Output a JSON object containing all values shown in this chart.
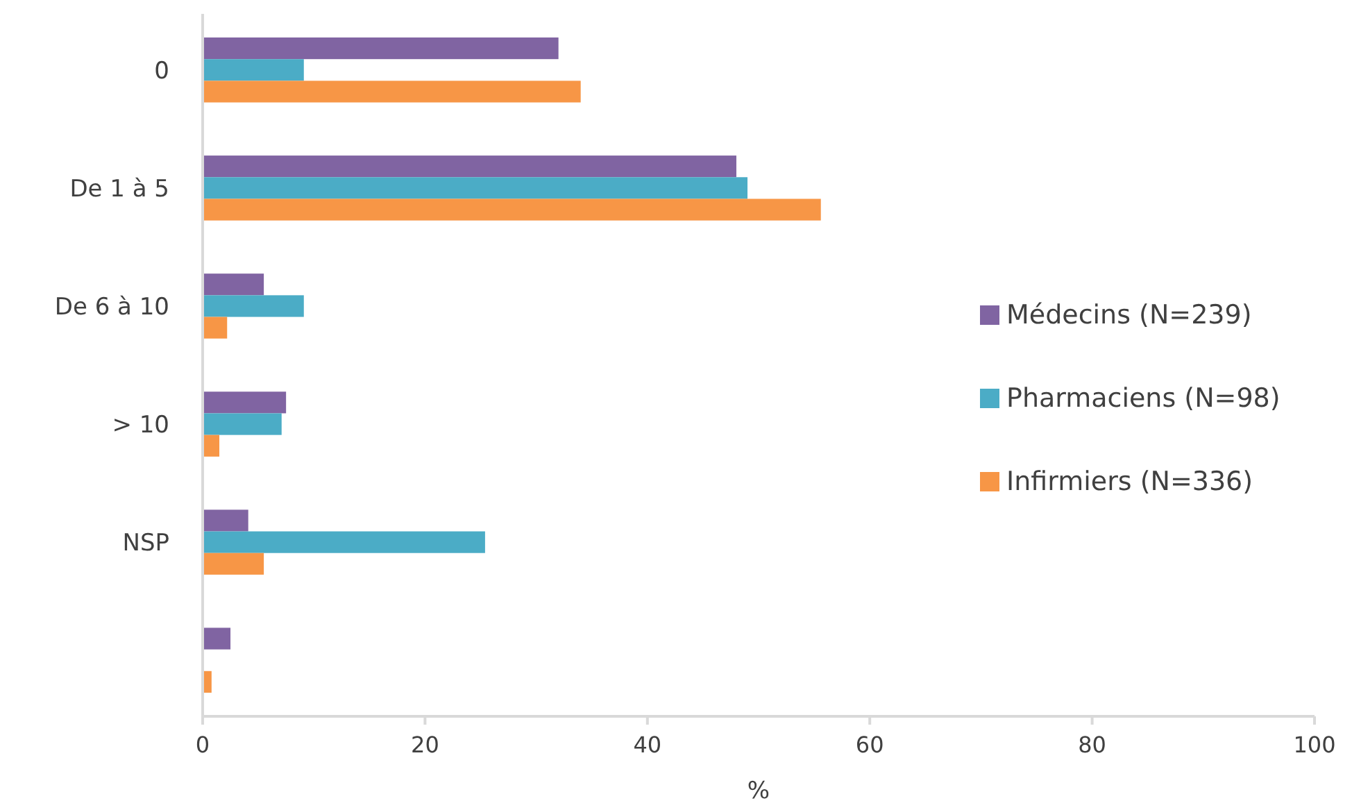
{
  "chart_data": {
    "type": "bar",
    "orientation": "horizontal",
    "xlabel": "%",
    "categories": [
      "0",
      "De 1 à 5",
      "De 6 à 10",
      "> 10",
      "NSP",
      null
    ],
    "series": [
      {
        "name": "Médecins (N=239)",
        "color": "#8064a2",
        "values": [
          32.0,
          48.0,
          5.5,
          7.5,
          4.1,
          2.5
        ]
      },
      {
        "name": "Pharmaciens (N=98)",
        "color": "#4bacc6",
        "values": [
          9.1,
          49.0,
          9.1,
          7.1,
          25.4,
          null
        ]
      },
      {
        "name": "Infirmiers (N=336)",
        "color": "#f79646",
        "values": [
          34.0,
          55.6,
          2.2,
          1.5,
          5.5,
          0.8
        ]
      }
    ],
    "xlim": [
      0,
      100
    ],
    "xticks": [
      0,
      20,
      40,
      60,
      80,
      100
    ],
    "grid": false,
    "legend": "right"
  }
}
